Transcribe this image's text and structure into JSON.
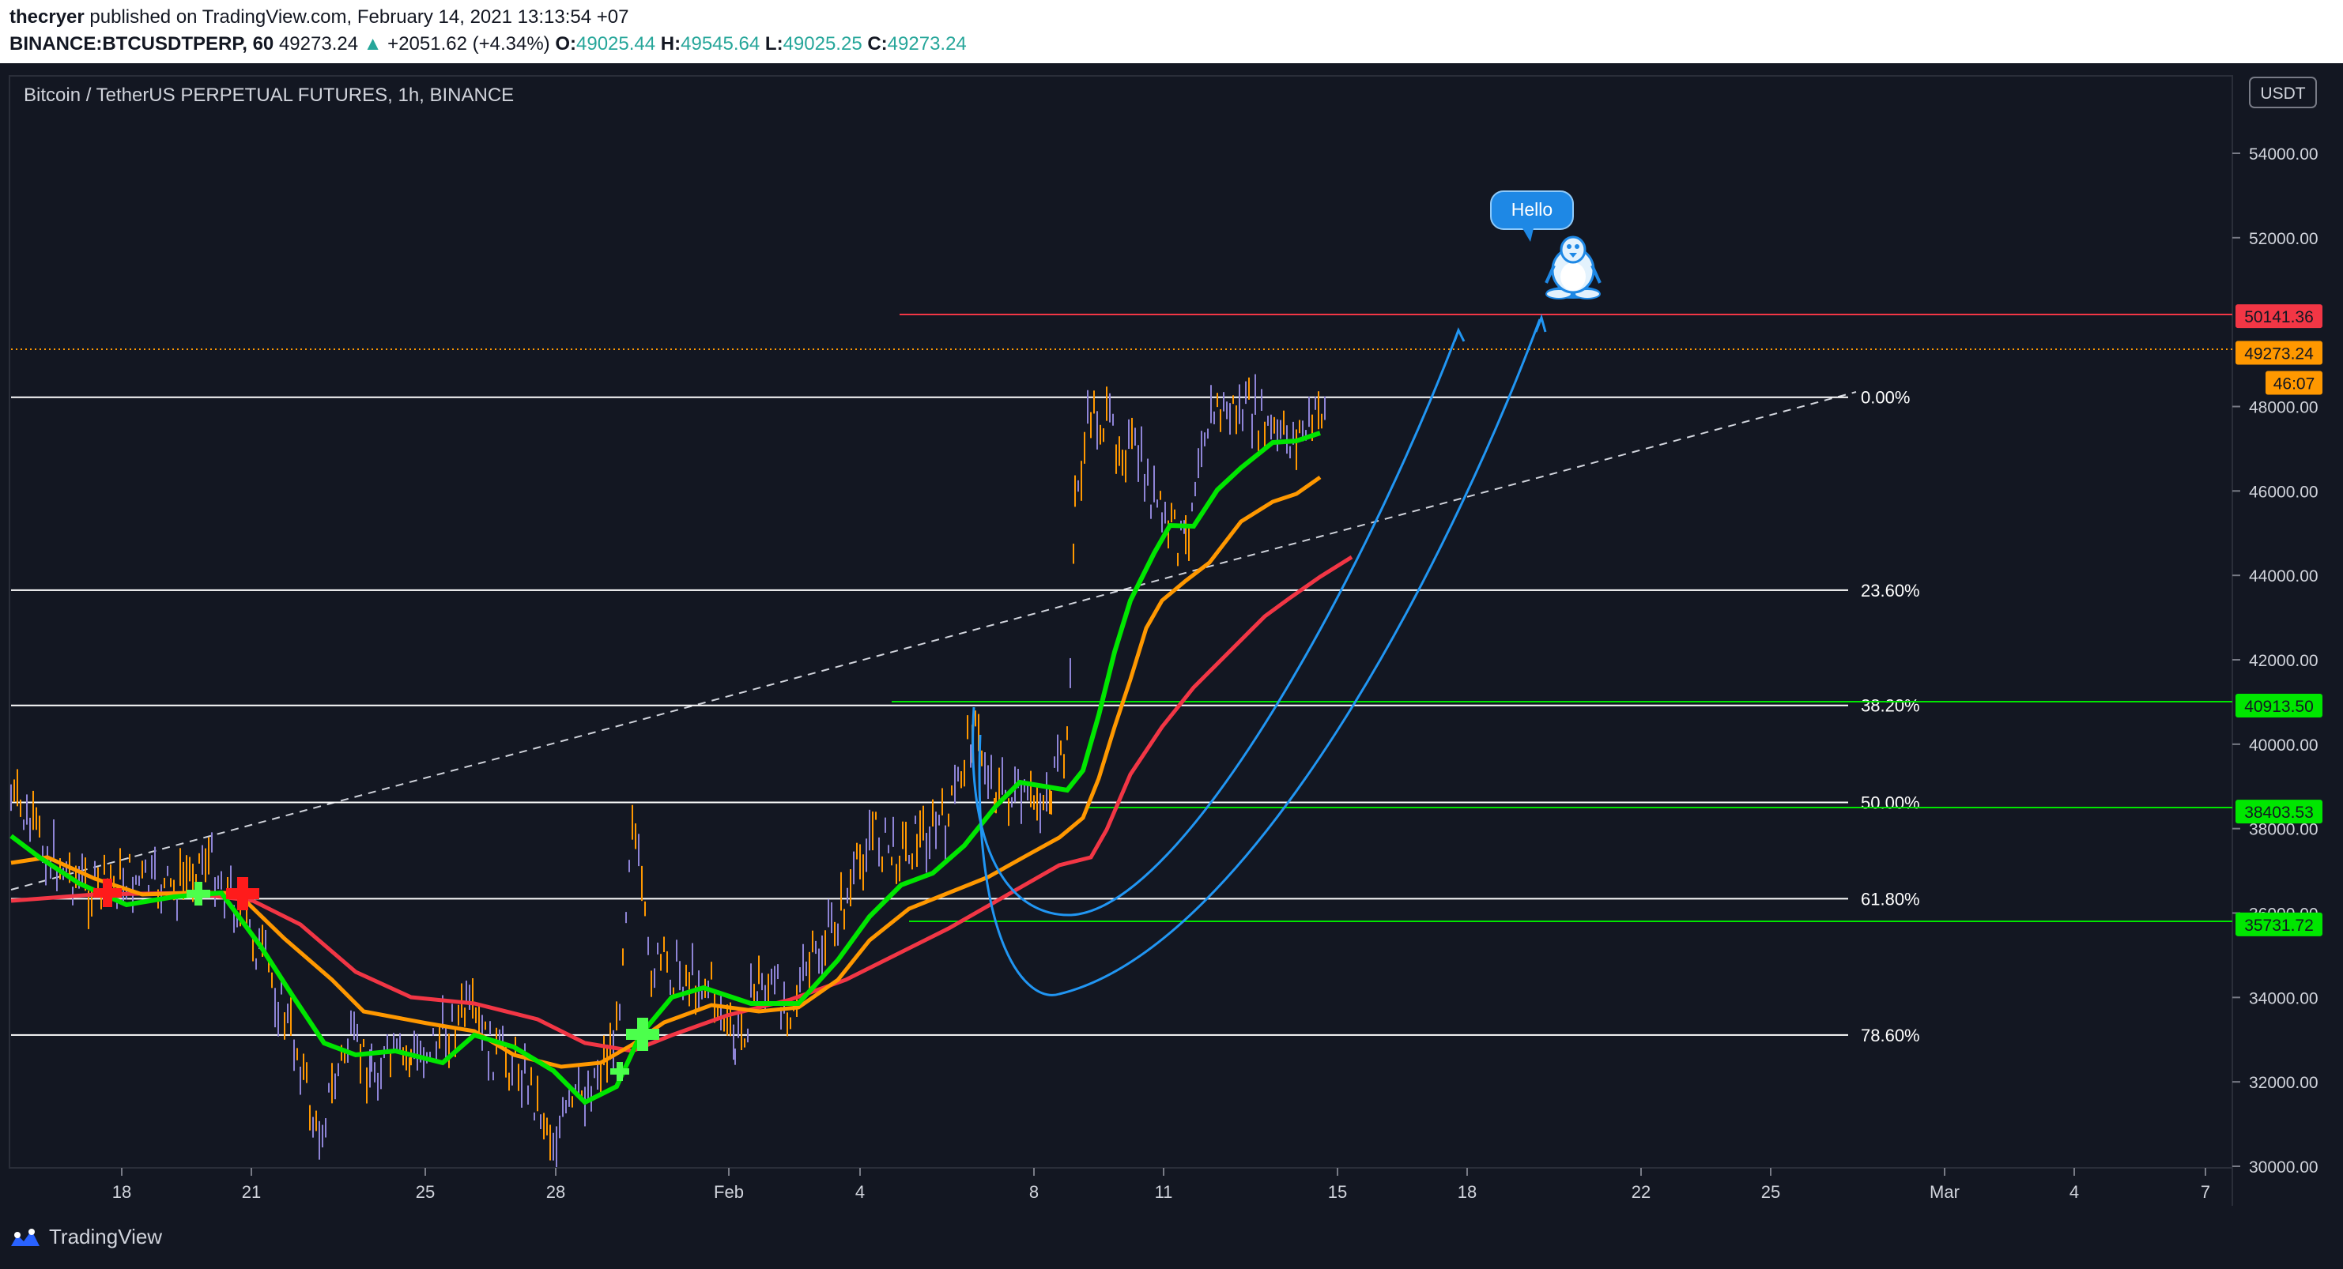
{
  "header": {
    "author": "thecryer",
    "published_text": "published on TradingView.com, February 14, 2021 13:13:54 +07",
    "symbol": "BINANCE:BTCUSDTPERP, 60",
    "last": "49273.24",
    "change": "+2051.62 (+4.34%)",
    "o_label": "O:",
    "o_value": "49025.44",
    "h_label": "H:",
    "h_value": "49545.64",
    "l_label": "L:",
    "l_value": "49025.25",
    "c_label": "C:",
    "c_value": "49273.24"
  },
  "chart": {
    "title": "Bitcoin / TetherUS PERPETUAL FUTURES, 1h, BINANCE",
    "currency": "USDT",
    "y_ticks": [
      "54000.00",
      "52000.00",
      "48000.00",
      "46000.00",
      "44000.00",
      "42000.00",
      "40000.00",
      "38000.00",
      "36000.00",
      "34000.00",
      "32000.00",
      "30000.00"
    ],
    "x_ticks": [
      "18",
      "21",
      "25",
      "28",
      "Feb",
      "4",
      "8",
      "11",
      "15",
      "18",
      "22",
      "25",
      "Mar",
      "4",
      "7"
    ],
    "fib_levels": [
      {
        "label": "0.00%",
        "price": 48220
      },
      {
        "label": "23.60%",
        "price": 43650
      },
      {
        "label": "38.20%",
        "price": 40920
      },
      {
        "label": "50.00%",
        "price": 38620
      },
      {
        "label": "61.80%",
        "price": 36340
      },
      {
        "label": "78.60%",
        "price": 33110
      }
    ],
    "price_tags": [
      {
        "text": "50141.36",
        "color": "#f23645"
      },
      {
        "text": "49273.24",
        "color": "#ff9800"
      },
      {
        "text": "46:07",
        "color": "#ff9800"
      },
      {
        "text": "40913.50",
        "color": "#00e600"
      },
      {
        "text": "38403.53",
        "color": "#00e600"
      },
      {
        "text": "35731.72",
        "color": "#00e600"
      }
    ],
    "annotation": "Hello",
    "colors": {
      "bg": "#131722",
      "ema_fast": "#00e600",
      "ema_mid": "#ff9800",
      "ema_slow": "#f23645",
      "arrow": "#2196f3"
    }
  },
  "footer": {
    "brand": "TradingView"
  }
}
